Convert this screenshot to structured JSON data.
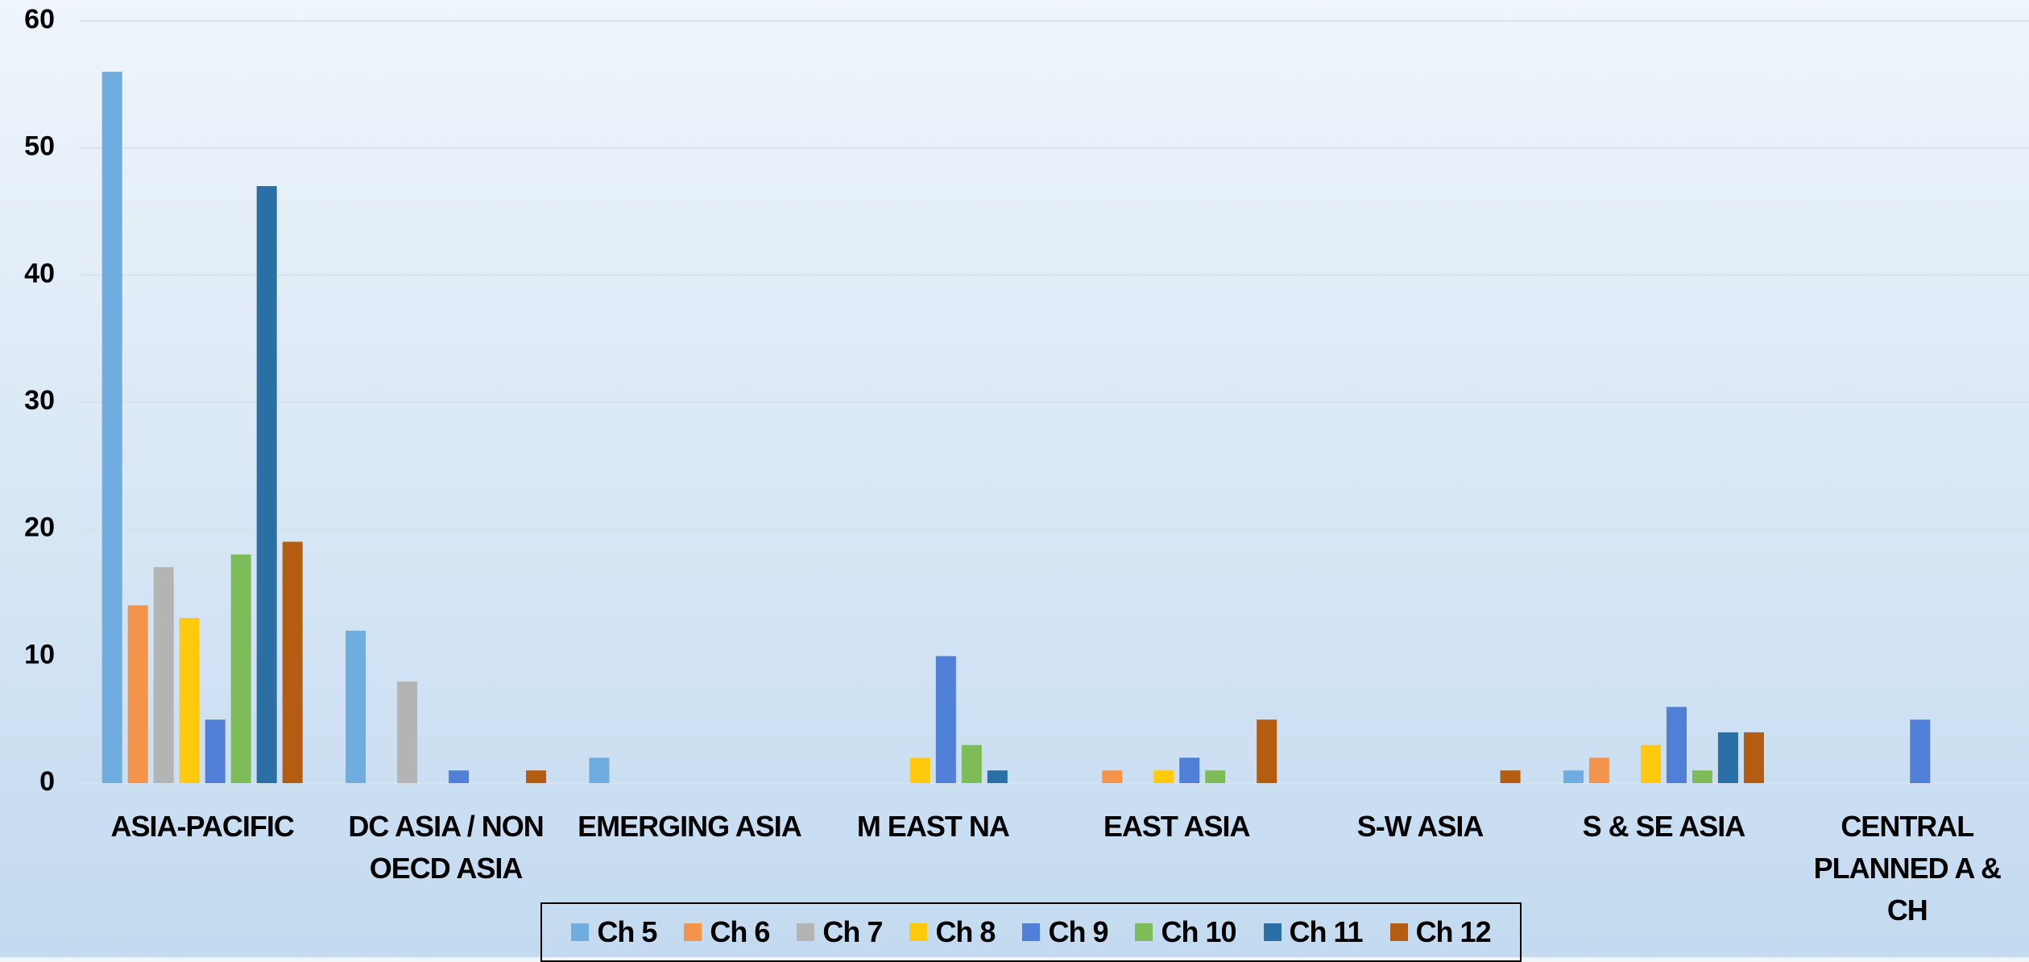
{
  "chart_data": {
    "type": "bar",
    "categories": [
      "ASIA-PACIFIC",
      "DC ASIA / NON OECD ASIA",
      "EMERGING ASIA",
      "M EAST NA",
      "EAST ASIA",
      "S-W ASIA",
      "S & SE ASIA",
      "CENTRAL PLANNED A & CH"
    ],
    "series": [
      {
        "name": "Ch 5",
        "color": "#6fade0",
        "values": [
          56,
          12,
          2,
          0,
          0,
          0,
          1,
          0
        ]
      },
      {
        "name": "Ch 6",
        "color": "#f4944a",
        "values": [
          14,
          0,
          0,
          0,
          1,
          0,
          2,
          0
        ]
      },
      {
        "name": "Ch 7",
        "color": "#b4b4b4",
        "values": [
          17,
          8,
          0,
          0,
          0,
          0,
          0,
          0
        ]
      },
      {
        "name": "Ch 8",
        "color": "#ffc90e",
        "values": [
          13,
          0,
          0,
          2,
          1,
          0,
          3,
          0
        ]
      },
      {
        "name": "Ch 9",
        "color": "#4f7fd6",
        "values": [
          5,
          1,
          0,
          10,
          2,
          0,
          6,
          5
        ]
      },
      {
        "name": "Ch 10",
        "color": "#7ebc59",
        "values": [
          18,
          0,
          0,
          3,
          1,
          0,
          1,
          0
        ]
      },
      {
        "name": "Ch 11",
        "color": "#2a6fa5",
        "values": [
          47,
          0,
          0,
          1,
          0,
          0,
          4,
          0
        ]
      },
      {
        "name": "Ch 12",
        "color": "#b45c12",
        "values": [
          19,
          1,
          0,
          0,
          5,
          1,
          4,
          0
        ]
      }
    ],
    "ylim": [
      0,
      60
    ],
    "yticks": [
      0,
      10,
      20,
      30,
      40,
      50,
      60
    ],
    "grid": true,
    "legend": "bottom"
  }
}
